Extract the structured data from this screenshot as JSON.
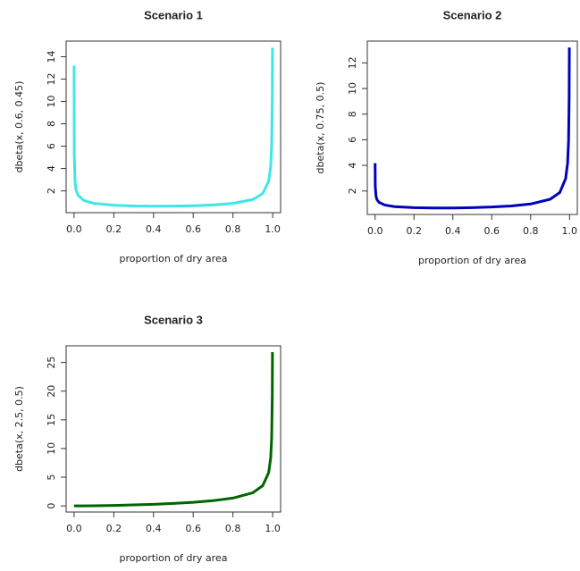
{
  "chart_data": [
    {
      "type": "line",
      "title": "Scenario 1",
      "xlabel": "proportion of dry area",
      "ylabel": "dbeta(x, 0.6, 0.45)",
      "color": "#3ee6e6",
      "x": [
        0.0001,
        0.001,
        0.005,
        0.01,
        0.02,
        0.05,
        0.1,
        0.2,
        0.3,
        0.4,
        0.5,
        0.6,
        0.7,
        0.8,
        0.9,
        0.95,
        0.98,
        0.99,
        0.995,
        0.998,
        0.999
      ],
      "values": [
        13.2,
        5.27,
        2.77,
        2.1,
        1.61,
        1.13,
        0.885,
        0.715,
        0.654,
        0.634,
        0.642,
        0.674,
        0.743,
        0.88,
        1.23,
        1.76,
        2.88,
        4.19,
        6.12,
        10.1,
        14.8
      ],
      "xlim": [
        -0.04,
        1.04
      ],
      "xticks": [
        {
          "value": 0,
          "label": "0.0"
        },
        0.2,
        0.4,
        0.6,
        0.8,
        {
          "value": 1,
          "label": "1.0"
        }
      ],
      "ylim": [
        0.05,
        15.4
      ],
      "yticks": [
        2,
        4,
        6,
        8,
        10,
        12,
        14
      ]
    },
    {
      "type": "line",
      "title": "Scenario 2",
      "xlabel": "proportion of dry area",
      "ylabel": "dbeta(x, 0.75, 0.5)",
      "color": "#0000c0",
      "x": [
        0.0001,
        0.001,
        0.005,
        0.01,
        0.02,
        0.05,
        0.1,
        0.2,
        0.3,
        0.4,
        0.5,
        0.6,
        0.7,
        0.8,
        0.9,
        0.95,
        0.98,
        0.99,
        0.995,
        0.998,
        0.999
      ],
      "values": [
        4.17,
        2.35,
        1.57,
        1.32,
        1.12,
        0.906,
        0.782,
        0.698,
        0.674,
        0.677,
        0.702,
        0.75,
        0.833,
        0.986,
        1.355,
        1.89,
        2.97,
        4.18,
        5.91,
        9.34,
        13.2
      ],
      "xlim": [
        -0.04,
        1.04
      ],
      "xticks": [
        {
          "value": 0,
          "label": "0.0"
        },
        0.2,
        0.4,
        0.6,
        0.8,
        {
          "value": 1,
          "label": "1.0"
        }
      ],
      "ylim": [
        0.17,
        13.7
      ],
      "yticks": [
        2,
        4,
        6,
        8,
        10,
        12
      ]
    },
    {
      "type": "line",
      "title": "Scenario 3",
      "xlabel": "proportion of dry area",
      "ylabel": "dbeta(x, 2.5, 0.5)",
      "color": "#006400",
      "x": [
        0.0001,
        0.001,
        0.005,
        0.01,
        0.02,
        0.05,
        0.1,
        0.2,
        0.3,
        0.4,
        0.5,
        0.6,
        0.7,
        0.8,
        0.9,
        0.95,
        0.98,
        0.99,
        0.995,
        0.998,
        0.999
      ],
      "values": [
        0,
        0,
        0.0003,
        0.0008,
        0.0024,
        0.01,
        0.028,
        0.085,
        0.167,
        0.277,
        0.424,
        0.624,
        0.908,
        1.358,
        2.29,
        3.52,
        5.83,
        8.36,
        11.92,
        18.93,
        26.8
      ],
      "xlim": [
        -0.04,
        1.04
      ],
      "xticks": [
        {
          "value": 0,
          "label": "0.0"
        },
        0.2,
        0.4,
        0.6,
        0.8,
        {
          "value": 1,
          "label": "1.0"
        }
      ],
      "ylim": [
        -1.07,
        27.9
      ],
      "yticks": [
        0,
        5,
        10,
        15,
        20,
        25
      ]
    }
  ]
}
